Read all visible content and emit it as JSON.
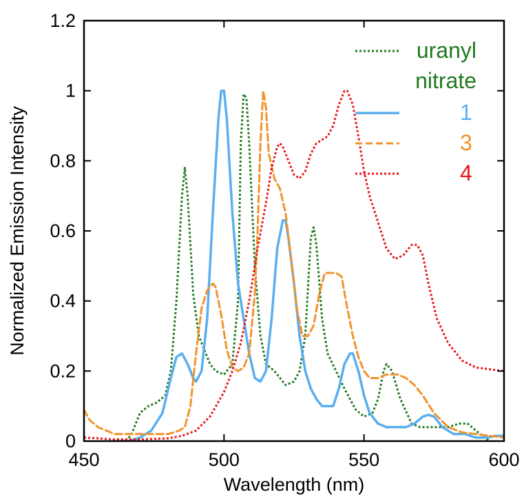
{
  "chart_data": {
    "type": "line",
    "title": "",
    "xlabel": "Wavelength (nm)",
    "ylabel": "Normalized Emission Intensity",
    "xlim": [
      450,
      600
    ],
    "ylim": [
      0,
      1.2
    ],
    "x_ticks": [
      450,
      500,
      550,
      600
    ],
    "x_tick_labels": [
      "450",
      "500",
      "550",
      "600"
    ],
    "y_ticks": [
      0,
      0.2,
      0.4,
      0.6,
      0.8,
      1,
      1.2
    ],
    "y_tick_labels": [
      "0",
      "0.2",
      "0.4",
      "0.6",
      "0.8",
      "1",
      "1.2"
    ],
    "grid": false,
    "legend_position": "top-right",
    "series": [
      {
        "name": "uranyl nitrate",
        "legend_lines": [
          "uranyl",
          "nitrate"
        ],
        "color": "#1f7a1f",
        "style": "dotted",
        "points": [
          [
            465,
            0.0
          ],
          [
            467,
            0.02
          ],
          [
            470,
            0.08
          ],
          [
            473,
            0.1
          ],
          [
            476,
            0.11
          ],
          [
            479,
            0.13
          ],
          [
            481,
            0.2
          ],
          [
            483,
            0.4
          ],
          [
            485,
            0.7
          ],
          [
            486,
            0.78
          ],
          [
            487,
            0.7
          ],
          [
            489,
            0.42
          ],
          [
            491,
            0.3
          ],
          [
            493,
            0.26
          ],
          [
            495,
            0.22
          ],
          [
            497,
            0.2
          ],
          [
            500,
            0.19
          ],
          [
            503,
            0.22
          ],
          [
            505,
            0.4
          ],
          [
            506,
            0.85
          ],
          [
            507,
            0.99
          ],
          [
            508,
            0.98
          ],
          [
            509,
            0.85
          ],
          [
            511,
            0.5
          ],
          [
            513,
            0.3
          ],
          [
            515,
            0.22
          ],
          [
            518,
            0.2
          ],
          [
            522,
            0.16
          ],
          [
            525,
            0.17
          ],
          [
            527,
            0.2
          ],
          [
            529,
            0.3
          ],
          [
            531,
            0.58
          ],
          [
            532,
            0.61
          ],
          [
            533,
            0.56
          ],
          [
            535,
            0.35
          ],
          [
            537,
            0.25
          ],
          [
            540,
            0.2
          ],
          [
            543,
            0.15
          ],
          [
            547,
            0.09
          ],
          [
            550,
            0.07
          ],
          [
            553,
            0.08
          ],
          [
            555,
            0.12
          ],
          [
            557,
            0.2
          ],
          [
            558,
            0.22
          ],
          [
            560,
            0.2
          ],
          [
            563,
            0.12
          ],
          [
            567,
            0.05
          ],
          [
            570,
            0.04
          ],
          [
            575,
            0.04
          ],
          [
            580,
            0.04
          ],
          [
            584,
            0.05
          ],
          [
            587,
            0.05
          ],
          [
            590,
            0.03
          ],
          [
            593,
            0.01
          ],
          [
            595,
            0.0
          ]
        ]
      },
      {
        "name": "1",
        "color": "#5aaef0",
        "style": "solid",
        "points": [
          [
            462,
            0.0
          ],
          [
            466,
            0.0
          ],
          [
            470,
            0.01
          ],
          [
            474,
            0.03
          ],
          [
            478,
            0.08
          ],
          [
            481,
            0.18
          ],
          [
            483,
            0.24
          ],
          [
            485,
            0.25
          ],
          [
            487,
            0.22
          ],
          [
            489,
            0.18
          ],
          [
            490,
            0.17
          ],
          [
            492,
            0.2
          ],
          [
            494,
            0.35
          ],
          [
            496,
            0.65
          ],
          [
            498,
            0.92
          ],
          [
            499,
            1.0
          ],
          [
            500,
            1.0
          ],
          [
            501,
            0.92
          ],
          [
            503,
            0.65
          ],
          [
            505,
            0.45
          ],
          [
            507,
            0.35
          ],
          [
            509,
            0.25
          ],
          [
            511,
            0.18
          ],
          [
            513,
            0.17
          ],
          [
            515,
            0.2
          ],
          [
            517,
            0.35
          ],
          [
            519,
            0.55
          ],
          [
            521,
            0.63
          ],
          [
            522,
            0.63
          ],
          [
            523,
            0.58
          ],
          [
            525,
            0.45
          ],
          [
            527,
            0.3
          ],
          [
            529,
            0.2
          ],
          [
            531,
            0.15
          ],
          [
            533,
            0.12
          ],
          [
            535,
            0.1
          ],
          [
            537,
            0.1
          ],
          [
            539,
            0.1
          ],
          [
            541,
            0.15
          ],
          [
            543,
            0.22
          ],
          [
            545,
            0.25
          ],
          [
            546,
            0.25
          ],
          [
            548,
            0.2
          ],
          [
            550,
            0.13
          ],
          [
            552,
            0.08
          ],
          [
            555,
            0.05
          ],
          [
            558,
            0.04
          ],
          [
            562,
            0.04
          ],
          [
            565,
            0.04
          ],
          [
            568,
            0.05
          ],
          [
            571,
            0.07
          ],
          [
            573,
            0.075
          ],
          [
            575,
            0.07
          ],
          [
            578,
            0.04
          ],
          [
            582,
            0.02
          ],
          [
            586,
            0.02
          ],
          [
            590,
            0.01
          ],
          [
            594,
            0.01
          ],
          [
            597,
            0.015
          ],
          [
            600,
            0.015
          ]
        ]
      },
      {
        "name": "3",
        "color": "#f0932b",
        "style": "dashed",
        "points": [
          [
            450,
            0.09
          ],
          [
            452,
            0.06
          ],
          [
            455,
            0.04
          ],
          [
            458,
            0.03
          ],
          [
            461,
            0.02
          ],
          [
            465,
            0.02
          ],
          [
            470,
            0.02
          ],
          [
            475,
            0.02
          ],
          [
            480,
            0.02
          ],
          [
            484,
            0.03
          ],
          [
            486,
            0.04
          ],
          [
            488,
            0.1
          ],
          [
            490,
            0.25
          ],
          [
            492,
            0.38
          ],
          [
            494,
            0.43
          ],
          [
            496,
            0.45
          ],
          [
            497,
            0.44
          ],
          [
            499,
            0.36
          ],
          [
            501,
            0.26
          ],
          [
            503,
            0.21
          ],
          [
            505,
            0.2
          ],
          [
            507,
            0.21
          ],
          [
            509,
            0.25
          ],
          [
            511,
            0.42
          ],
          [
            512,
            0.6
          ],
          [
            513,
            0.85
          ],
          [
            514,
            1.0
          ],
          [
            515,
            0.95
          ],
          [
            516,
            0.82
          ],
          [
            518,
            0.75
          ],
          [
            520,
            0.72
          ],
          [
            522,
            0.65
          ],
          [
            524,
            0.52
          ],
          [
            526,
            0.38
          ],
          [
            528,
            0.3
          ],
          [
            530,
            0.3
          ],
          [
            532,
            0.33
          ],
          [
            534,
            0.42
          ],
          [
            536,
            0.48
          ],
          [
            538,
            0.48
          ],
          [
            540,
            0.48
          ],
          [
            542,
            0.47
          ],
          [
            544,
            0.38
          ],
          [
            546,
            0.3
          ],
          [
            548,
            0.24
          ],
          [
            550,
            0.2
          ],
          [
            552,
            0.18
          ],
          [
            555,
            0.18
          ],
          [
            558,
            0.19
          ],
          [
            562,
            0.19
          ],
          [
            565,
            0.18
          ],
          [
            568,
            0.16
          ],
          [
            571,
            0.13
          ],
          [
            575,
            0.08
          ],
          [
            580,
            0.04
          ],
          [
            585,
            0.025
          ],
          [
            590,
            0.02
          ],
          [
            595,
            0.015
          ],
          [
            600,
            0.01
          ]
        ]
      },
      {
        "name": "4",
        "color": "#e8151b",
        "style": "dotted",
        "points": [
          [
            450,
            0.01
          ],
          [
            455,
            0.008
          ],
          [
            460,
            0.005
          ],
          [
            470,
            0.005
          ],
          [
            480,
            0.008
          ],
          [
            485,
            0.015
          ],
          [
            490,
            0.03
          ],
          [
            495,
            0.07
          ],
          [
            500,
            0.14
          ],
          [
            503,
            0.2
          ],
          [
            506,
            0.28
          ],
          [
            509,
            0.4
          ],
          [
            512,
            0.55
          ],
          [
            515,
            0.68
          ],
          [
            517,
            0.78
          ],
          [
            519,
            0.84
          ],
          [
            520,
            0.85
          ],
          [
            521,
            0.84
          ],
          [
            523,
            0.8
          ],
          [
            525,
            0.76
          ],
          [
            527,
            0.75
          ],
          [
            529,
            0.77
          ],
          [
            531,
            0.82
          ],
          [
            533,
            0.85
          ],
          [
            535,
            0.86
          ],
          [
            537,
            0.87
          ],
          [
            539,
            0.9
          ],
          [
            541,
            0.96
          ],
          [
            543,
            1.0
          ],
          [
            544,
            1.0
          ],
          [
            546,
            0.96
          ],
          [
            548,
            0.87
          ],
          [
            550,
            0.77
          ],
          [
            552,
            0.7
          ],
          [
            554,
            0.65
          ],
          [
            556,
            0.6
          ],
          [
            558,
            0.55
          ],
          [
            561,
            0.52
          ],
          [
            564,
            0.53
          ],
          [
            567,
            0.56
          ],
          [
            569,
            0.56
          ],
          [
            571,
            0.53
          ],
          [
            573,
            0.45
          ],
          [
            576,
            0.35
          ],
          [
            580,
            0.28
          ],
          [
            585,
            0.23
          ],
          [
            590,
            0.21
          ],
          [
            595,
            0.205
          ],
          [
            600,
            0.2
          ]
        ]
      }
    ]
  }
}
